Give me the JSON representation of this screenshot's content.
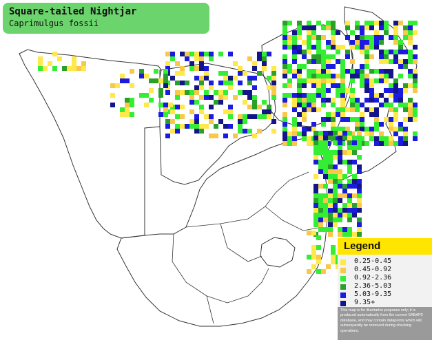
{
  "title": {
    "common_name": "Square-tailed Nightjar",
    "scientific_name": "Caprimulgus fossii"
  },
  "legend": {
    "title": "Legend",
    "items": [
      {
        "label": "0.25-0.45",
        "color": "#ffe84a"
      },
      {
        "label": "0.45-0.92",
        "color": "#f8c84a"
      },
      {
        "label": "0.92-2.36",
        "color": "#33ee33"
      },
      {
        "label": "2.36-5.03",
        "color": "#2aa02a"
      },
      {
        "label": "5.03-9.35",
        "color": "#1a1ae0"
      },
      {
        "label": "9.35+",
        "color": "#15158a"
      }
    ],
    "disclaimer": "This map is for illustrative purposes only; it is produced automatically from the current SABAP2 database, and may contain datapoints which will subsequently be removed during checking operations."
  },
  "map": {
    "region": "Southern Africa",
    "border_color": "#333333",
    "land_color": "#ffffff"
  }
}
